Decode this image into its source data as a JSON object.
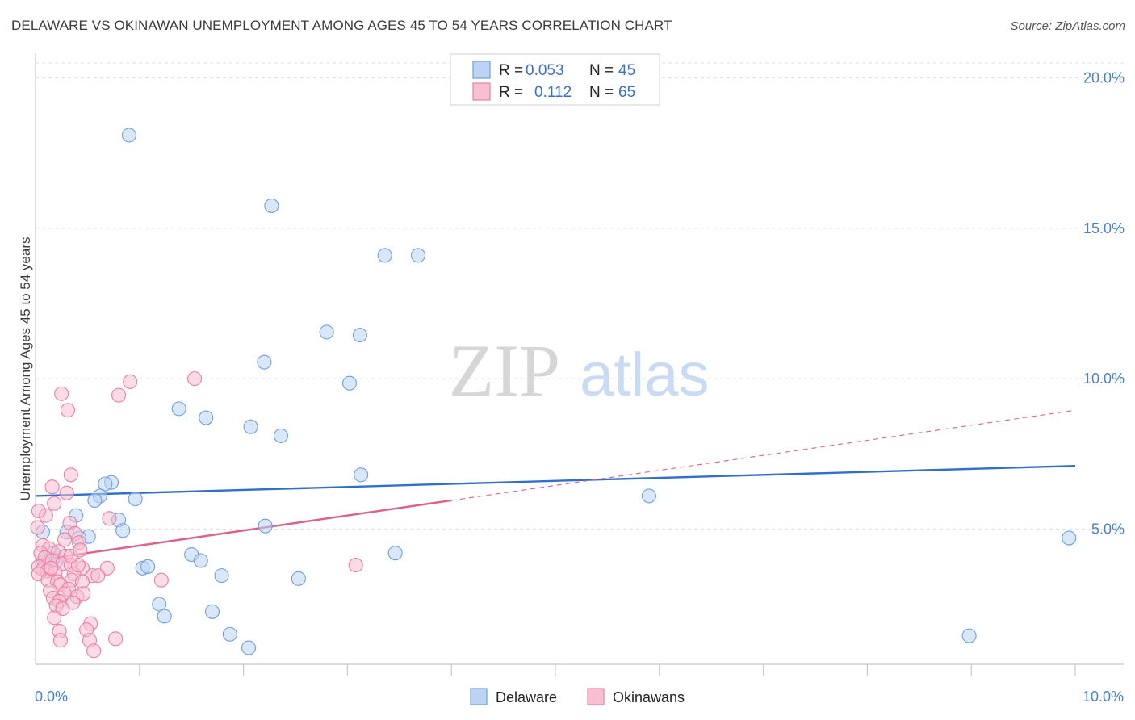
{
  "title": "DELAWARE VS OKINAWAN UNEMPLOYMENT AMONG AGES 45 TO 54 YEARS CORRELATION CHART",
  "source": "Source: ZipAtlas.com",
  "watermark": {
    "zip": "ZIP",
    "atlas": "atlas"
  },
  "legend_top": [
    {
      "r_label": "R =",
      "r_value": "0.053",
      "n_label": "N =",
      "n_value": "45"
    },
    {
      "r_label": "R =",
      "r_value": "0.112",
      "n_label": "N =",
      "n_value": "65"
    }
  ],
  "legend_bottom": [
    "Delaware",
    "Okinawans"
  ],
  "colors": {
    "delaware": "#6f9fe0",
    "delaware_fill": "#bcd3f3",
    "okinawan": "#ec7fa2",
    "okinawan_fill": "#f7c0d2",
    "delaware_line": "#2f6fcf",
    "okinawan_line": "#e0608d"
  },
  "chart_data": {
    "type": "scatter",
    "title": "DELAWARE VS OKINAWAN UNEMPLOYMENT AMONG AGES 45 TO 54 YEARS CORRELATION CHART",
    "xlabel": "",
    "ylabel": "Unemployment Among Ages 45 to 54 years",
    "xlim": [
      0,
      10
    ],
    "ylim": [
      0.5,
      20.5
    ],
    "x_tick_labels": [
      "0.0%",
      "10.0%"
    ],
    "y_ticks": [
      5,
      10,
      15,
      20
    ],
    "y_tick_labels": [
      "5.0%",
      "10.0%",
      "15.0%",
      "20.0%"
    ],
    "series": [
      {
        "name": "Delaware",
        "R": 0.053,
        "N": 45,
        "trend": {
          "x": [
            0,
            10
          ],
          "y": [
            6.1,
            7.1
          ],
          "dashed_extension": false
        },
        "points": [
          [
            0.9,
            18.1
          ],
          [
            2.27,
            15.75
          ],
          [
            3.36,
            14.1
          ],
          [
            3.68,
            14.1
          ],
          [
            2.8,
            11.55
          ],
          [
            3.12,
            11.45
          ],
          [
            2.2,
            10.55
          ],
          [
            3.02,
            9.85
          ],
          [
            1.38,
            9.0
          ],
          [
            1.64,
            8.7
          ],
          [
            2.07,
            8.4
          ],
          [
            2.36,
            8.1
          ],
          [
            3.13,
            6.8
          ],
          [
            0.73,
            6.55
          ],
          [
            0.67,
            6.5
          ],
          [
            0.62,
            6.1
          ],
          [
            0.57,
            5.95
          ],
          [
            0.96,
            6.0
          ],
          [
            0.39,
            5.45
          ],
          [
            0.8,
            5.3
          ],
          [
            0.84,
            4.95
          ],
          [
            2.21,
            5.1
          ],
          [
            0.3,
            4.9
          ],
          [
            0.51,
            4.75
          ],
          [
            0.42,
            4.7
          ],
          [
            0.07,
            4.9
          ],
          [
            5.9,
            6.1
          ],
          [
            9.94,
            4.7
          ],
          [
            0.17,
            4.2
          ],
          [
            1.5,
            4.15
          ],
          [
            3.46,
            4.2
          ],
          [
            1.59,
            3.95
          ],
          [
            1.03,
            3.7
          ],
          [
            1.08,
            3.75
          ],
          [
            1.79,
            3.45
          ],
          [
            2.53,
            3.35
          ],
          [
            1.19,
            2.5
          ],
          [
            1.24,
            2.1
          ],
          [
            1.7,
            2.25
          ],
          [
            1.87,
            1.5
          ],
          [
            2.05,
            1.05
          ],
          [
            8.98,
            1.45
          ],
          [
            0.08,
            3.9
          ],
          [
            0.14,
            4.0
          ],
          [
            0.2,
            3.95
          ]
        ]
      },
      {
        "name": "Okinawans",
        "R": 0.112,
        "N": 65,
        "trend": {
          "x": [
            0,
            4.0
          ],
          "y": [
            3.95,
            5.95
          ],
          "dashed_extension": {
            "x": [
              4.0,
              10
            ],
            "y": [
              5.95,
              8.95
            ]
          }
        },
        "points": [
          [
            0.25,
            9.5
          ],
          [
            0.31,
            8.95
          ],
          [
            0.91,
            9.9
          ],
          [
            0.8,
            9.45
          ],
          [
            1.53,
            10.0
          ],
          [
            0.34,
            6.8
          ],
          [
            0.16,
            6.4
          ],
          [
            0.3,
            6.2
          ],
          [
            0.18,
            5.85
          ],
          [
            0.1,
            5.45
          ],
          [
            0.03,
            5.6
          ],
          [
            0.71,
            5.35
          ],
          [
            0.02,
            5.05
          ],
          [
            0.33,
            5.2
          ],
          [
            0.38,
            4.85
          ],
          [
            0.28,
            4.65
          ],
          [
            0.42,
            4.55
          ],
          [
            0.07,
            4.45
          ],
          [
            0.13,
            4.35
          ],
          [
            0.22,
            4.25
          ],
          [
            0.29,
            4.1
          ],
          [
            0.05,
            4.2
          ],
          [
            0.09,
            4.05
          ],
          [
            0.16,
            3.95
          ],
          [
            0.26,
            3.85
          ],
          [
            0.34,
            3.8
          ],
          [
            0.03,
            3.75
          ],
          [
            0.07,
            3.65
          ],
          [
            0.11,
            3.6
          ],
          [
            0.19,
            3.55
          ],
          [
            0.45,
            3.7
          ],
          [
            0.69,
            3.7
          ],
          [
            0.37,
            3.5
          ],
          [
            0.55,
            3.45
          ],
          [
            0.03,
            3.5
          ],
          [
            0.12,
            3.3
          ],
          [
            0.21,
            3.25
          ],
          [
            0.35,
            3.3
          ],
          [
            0.45,
            3.25
          ],
          [
            0.24,
            3.15
          ],
          [
            0.32,
            3.0
          ],
          [
            0.14,
            2.95
          ],
          [
            0.28,
            2.85
          ],
          [
            0.4,
            2.75
          ],
          [
            0.46,
            2.85
          ],
          [
            0.17,
            2.7
          ],
          [
            0.23,
            2.6
          ],
          [
            0.36,
            2.55
          ],
          [
            0.2,
            2.45
          ],
          [
            0.26,
            2.35
          ],
          [
            0.18,
            2.05
          ],
          [
            0.53,
            1.85
          ],
          [
            0.49,
            1.65
          ],
          [
            0.23,
            1.6
          ],
          [
            0.24,
            1.3
          ],
          [
            0.52,
            1.3
          ],
          [
            0.77,
            1.35
          ],
          [
            0.56,
            0.95
          ],
          [
            3.08,
            3.8
          ],
          [
            1.21,
            3.3
          ],
          [
            0.41,
            3.8
          ],
          [
            0.6,
            3.45
          ],
          [
            0.34,
            4.1
          ],
          [
            0.43,
            4.3
          ],
          [
            0.15,
            3.7
          ]
        ]
      }
    ]
  }
}
